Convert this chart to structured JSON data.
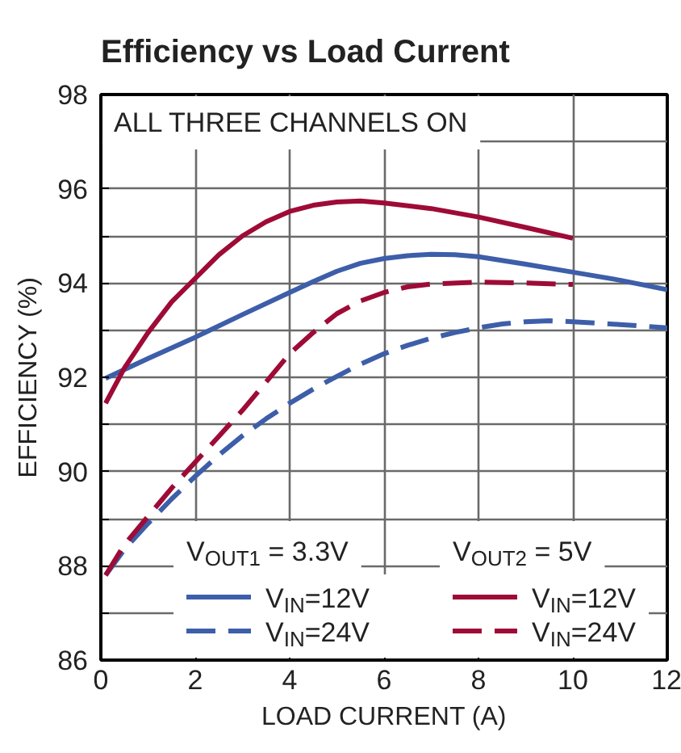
{
  "chart_data": {
    "type": "line",
    "title": "Efficiency vs Load Current",
    "xlabel": "LOAD CURRENT (A)",
    "ylabel": "EFFICIENCY (%)",
    "annotations": [
      "ALL THREE CHANNELS ON",
      "V$_{OUT1}$ = 3.3V",
      "V$_{OUT2}$ = 5V"
    ],
    "xlim": [
      0,
      12
    ],
    "ylim": [
      86,
      98
    ],
    "xticks": [
      0,
      2,
      4,
      6,
      8,
      10,
      12
    ],
    "yticks": [
      86,
      {
        "value": 87,
        "label": null
      },
      88,
      {
        "value": 89,
        "label": null
      },
      90,
      {
        "value": 91,
        "label": null
      },
      92,
      {
        "value": 93,
        "label": null
      },
      94,
      {
        "value": 95,
        "label": null
      },
      96,
      {
        "value": 97,
        "label": null
      },
      98
    ],
    "grid": true,
    "legend": "bottom",
    "series": [
      {
        "name": "V$_{IN}$=12V",
        "color": "#3d5ea9",
        "line_style": "solid",
        "x": [
          0.1,
          1,
          2,
          3,
          4,
          4.5,
          5,
          5.5,
          6,
          6.5,
          7,
          7.5,
          8,
          9,
          10,
          11,
          12
        ],
        "values": [
          91.98,
          92.4,
          92.85,
          93.33,
          93.8,
          94.03,
          94.25,
          94.42,
          94.52,
          94.58,
          94.61,
          94.6,
          94.56,
          94.4,
          94.23,
          94.06,
          93.86
        ]
      },
      {
        "name": "V$_{IN}$=24V",
        "color": "#3d5ea9",
        "line_style": "dashed",
        "x": [
          0.1,
          0.5,
          1,
          1.5,
          2,
          2.5,
          3,
          3.5,
          4,
          4.5,
          5,
          5.5,
          6,
          6.5,
          7,
          7.5,
          8,
          8.5,
          9,
          9.5,
          10,
          11,
          12
        ],
        "values": [
          87.8,
          88.35,
          88.9,
          89.42,
          89.9,
          90.35,
          90.76,
          91.12,
          91.45,
          91.75,
          92.02,
          92.28,
          92.5,
          92.68,
          92.83,
          92.95,
          93.05,
          93.13,
          93.18,
          93.2,
          93.18,
          93.12,
          93.05
        ]
      },
      {
        "name": "V$_{IN}$=12V",
        "color": "#9e0b36",
        "line_style": "solid",
        "x": [
          0.1,
          0.5,
          1,
          1.5,
          2,
          2.5,
          3,
          3.5,
          4,
          4.5,
          5,
          5.5,
          6,
          7,
          8,
          9,
          10
        ],
        "values": [
          91.45,
          92.2,
          92.95,
          93.6,
          94.1,
          94.6,
          95.0,
          95.3,
          95.52,
          95.65,
          95.72,
          95.74,
          95.7,
          95.58,
          95.4,
          95.18,
          94.95
        ]
      },
      {
        "name": "V$_{IN}$=24V",
        "color": "#9e0b36",
        "line_style": "dashed",
        "x": [
          0.1,
          0.5,
          1,
          1.5,
          2,
          2.5,
          3,
          3.5,
          4,
          4.5,
          5,
          5.5,
          6,
          6.5,
          7,
          8,
          9,
          10
        ],
        "values": [
          87.8,
          88.45,
          89.05,
          89.65,
          90.2,
          90.75,
          91.3,
          91.9,
          92.5,
          92.95,
          93.35,
          93.62,
          93.8,
          93.92,
          93.98,
          94.02,
          94.0,
          93.97
        ]
      }
    ]
  }
}
